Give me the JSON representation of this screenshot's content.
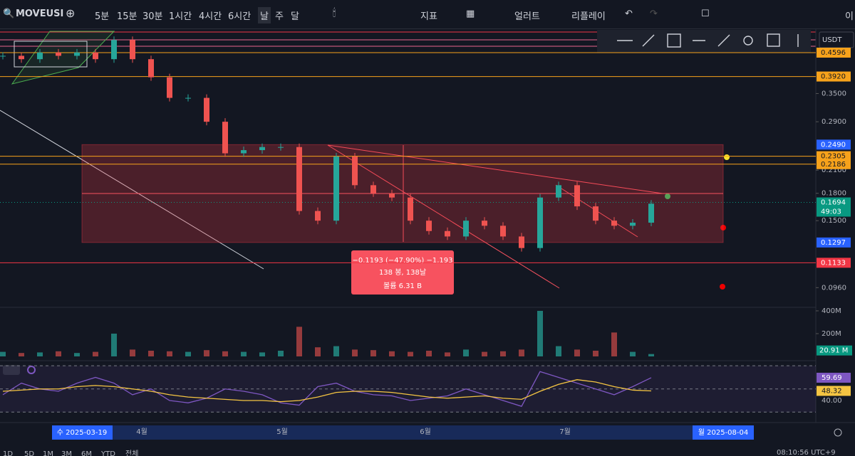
{
  "toolbar": {
    "symbol": "MOVEUSI",
    "intervals": [
      "5분",
      "15분",
      "30분",
      "1시간",
      "4시간",
      "6시간",
      "날",
      "주",
      "달"
    ],
    "indicators": "지표",
    "alerts": "얼러트",
    "replay": "리플레이",
    "account": "이"
  },
  "currency": "USDT",
  "measure": {
    "change": "−0.1193 (−47.90%) −1,193",
    "bars": "138 봉, 138날",
    "volume": "볼륨 6.31 B"
  },
  "time_axis": {
    "months": [
      "4월",
      "5월",
      "6월",
      "7월"
    ],
    "range_start": "수 2025-03-19",
    "range_end": "월 2025-08-04"
  },
  "ranges": [
    "1D",
    "5D",
    "1M",
    "3M",
    "6M",
    "YTD",
    "전체"
  ],
  "clock": "08:10:56 UTC+9",
  "chart_data": [
    {
      "type": "candlestick",
      "log_scale": true,
      "up_color": "#26a69a",
      "down_color": "#ef5350",
      "values": [
        0.45,
        0.44,
        0.46,
        0.45,
        0.46,
        0.44,
        0.5,
        0.44,
        0.39,
        0.34,
        0.34,
        0.29,
        0.235,
        0.24,
        0.245,
        0.245,
        0.16,
        0.15,
        0.23,
        0.19,
        0.18,
        0.175,
        0.15,
        0.14,
        0.135,
        0.15,
        0.145,
        0.135,
        0.125,
        0.175,
        0.19,
        0.165,
        0.15,
        0.145,
        0.148,
        0.168
      ],
      "ylim": [
        0.085,
        0.54
      ],
      "yticks": [
        {
          "value": 0.35,
          "label": "0.3500"
        },
        {
          "value": 0.29,
          "label": "0.2900"
        },
        {
          "value": 0.21,
          "label": "0.2100"
        },
        {
          "value": 0.18,
          "label": "0.1800"
        },
        {
          "value": 0.15,
          "label": "0.1500"
        },
        {
          "value": 0.096,
          "label": "0.0960"
        }
      ],
      "levels": [
        {
          "value": 0.4596,
          "label": "0.4596",
          "color": "#f7a21b"
        },
        {
          "value": 0.392,
          "label": "0.3920",
          "color": "#f7a21b"
        },
        {
          "value": 0.2305,
          "label": "0.2305",
          "color": "#f7a21b"
        },
        {
          "value": 0.2186,
          "label": "0.2186",
          "color": "#f7a21b"
        },
        {
          "value": 0.1133,
          "label": "0.1133",
          "color": "#f23645"
        }
      ],
      "zone": {
        "top": {
          "value": 0.249,
          "label": "0.2490"
        },
        "bottom": {
          "value": 0.1297,
          "label": "0.1297"
        },
        "color": "#2962ff"
      },
      "last": {
        "value": 0.1694,
        "label": "0.1694",
        "countdown": "49:03",
        "color": "#089981"
      }
    },
    {
      "type": "bar",
      "values": [
        40,
        30,
        35,
        45,
        30,
        40,
        200,
        60,
        50,
        45,
        40,
        55,
        45,
        40,
        35,
        50,
        260,
        80,
        90,
        60,
        55,
        45,
        40,
        50,
        35,
        60,
        40,
        45,
        60,
        400,
        90,
        60,
        50,
        210,
        40,
        20.91
      ],
      "value_labels": [
        null,
        null,
        null,
        null,
        null,
        null,
        null,
        null,
        null,
        null,
        null,
        null,
        null,
        null,
        null,
        null,
        null,
        null,
        null,
        null,
        null,
        null,
        null,
        null,
        null,
        null,
        null,
        null,
        null,
        null,
        null,
        null,
        null,
        null,
        null,
        "20.91 M"
      ],
      "ylim": [
        0,
        431
      ],
      "yticks": [
        {
          "value": 200,
          "label": "200M"
        },
        {
          "value": 400,
          "label": "400M"
        }
      ]
    },
    {
      "type": "line",
      "ylim": [
        26.5,
        73.8
      ],
      "levels": [
        30,
        50,
        70
      ],
      "yticks": [
        {
          "value": 40,
          "label": "40.00"
        }
      ],
      "series": [
        {
          "color": "#7e57c2",
          "values": [
            45,
            55,
            50,
            48,
            55,
            60,
            55,
            45,
            50,
            40,
            38,
            42,
            50,
            48,
            45,
            38,
            36,
            52,
            55,
            48,
            45,
            44,
            40,
            42,
            44,
            50,
            45,
            40,
            35,
            65,
            60,
            55,
            50,
            45,
            52,
            59.69
          ],
          "value_labels": [
            null,
            null,
            null,
            null,
            null,
            null,
            null,
            null,
            null,
            null,
            null,
            null,
            null,
            null,
            null,
            null,
            null,
            null,
            null,
            null,
            null,
            null,
            null,
            null,
            null,
            null,
            null,
            null,
            null,
            null,
            null,
            null,
            null,
            null,
            null,
            "59.69"
          ]
        },
        {
          "color": "#f5c542",
          "values": [
            48,
            49,
            50,
            50,
            52,
            53,
            52,
            50,
            48,
            45,
            43,
            42,
            41,
            40,
            40,
            39,
            40,
            43,
            47,
            48,
            48,
            47,
            45,
            43,
            42,
            43,
            44,
            42,
            41,
            48,
            54,
            58,
            56,
            52,
            49,
            48.32
          ],
          "value_labels": [
            null,
            null,
            null,
            null,
            null,
            null,
            null,
            null,
            null,
            null,
            null,
            null,
            null,
            null,
            null,
            null,
            null,
            null,
            null,
            null,
            null,
            null,
            null,
            null,
            null,
            null,
            null,
            null,
            null,
            null,
            null,
            null,
            null,
            null,
            null,
            "48.32"
          ]
        }
      ]
    }
  ]
}
